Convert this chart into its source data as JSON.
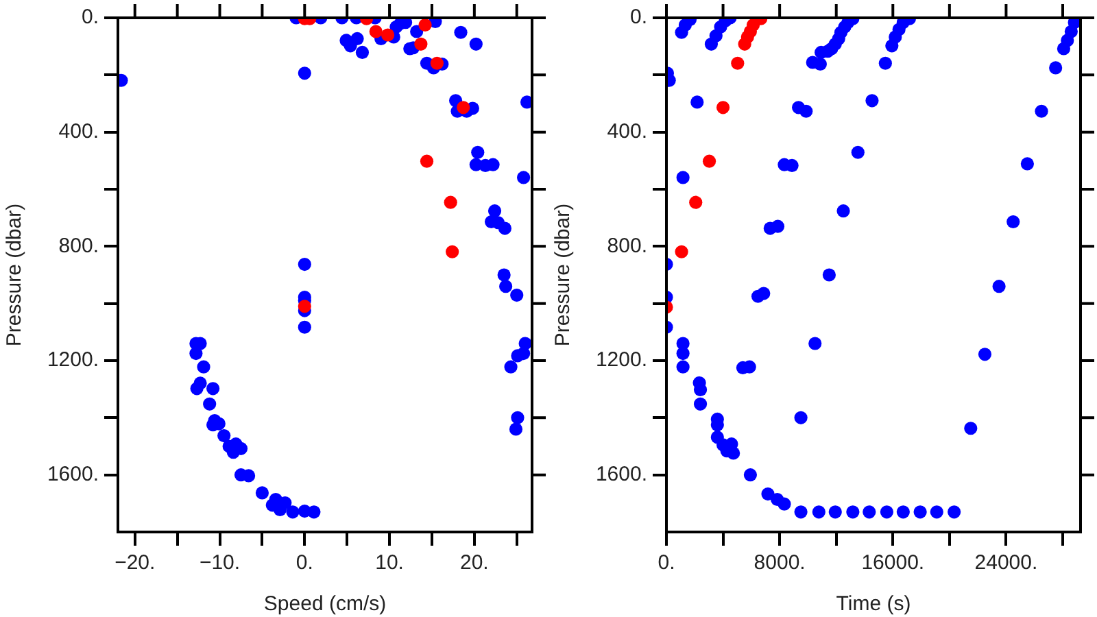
{
  "chart_data": [
    {
      "type": "scatter",
      "xlabel": "Speed (cm/s)",
      "ylabel": "Pressure (dbar)",
      "xlim": [
        -22,
        26.8
      ],
      "ylim": [
        1800,
        0
      ],
      "xticks": [
        {
          "value": -20,
          "label": "−20."
        },
        {
          "value": -15,
          "label": null
        },
        {
          "value": -10,
          "label": "−10."
        },
        {
          "value": -5,
          "label": null
        },
        {
          "value": 0,
          "label": "0."
        },
        {
          "value": 5,
          "label": null
        },
        {
          "value": 10,
          "label": "10."
        },
        {
          "value": 15,
          "label": null
        },
        {
          "value": 20,
          "label": "20."
        },
        {
          "value": 25,
          "label": null
        }
      ],
      "yticks": [
        {
          "value": 0,
          "label": "0."
        },
        {
          "value": 200,
          "label": null
        },
        {
          "value": 400,
          "label": "400."
        },
        {
          "value": 600,
          "label": null
        },
        {
          "value": 800,
          "label": "800."
        },
        {
          "value": 1000,
          "label": null
        },
        {
          "value": 1200,
          "label": "1200."
        },
        {
          "value": 1400,
          "label": null
        },
        {
          "value": 1600,
          "label": "1600."
        }
      ],
      "grid": false,
      "legend": false,
      "marker": "circle",
      "series": [
        {
          "color": "#0000ff",
          "x": [
            -21.6,
            -1,
            1.9,
            4.4,
            6.1,
            8.3,
            0,
            4.9,
            5.4,
            6.2,
            6.8,
            9,
            10.5,
            10.8,
            11.3,
            11.9,
            12.4,
            12.8,
            13.2,
            14.4,
            15.2,
            16.2,
            15.4,
            18.4,
            20.2,
            17.8,
            18,
            19.1,
            19.8,
            26.2,
            20.4,
            20.2,
            21.3,
            22.2,
            25.8,
            22.4,
            22,
            22.8,
            23.6,
            23.5,
            23.7,
            25,
            0,
            0,
            0,
            0,
            0,
            -12.8,
            -12.3,
            -12.8,
            -11.9,
            -12.7,
            -12.3,
            -10.8,
            -11.2,
            -10.6,
            -10.1,
            -10.8,
            -9.5,
            -8.9,
            -8.1,
            -7.5,
            -8.4,
            -7.5,
            -6.6,
            -5,
            -3.4,
            -2.3,
            -2.9,
            -1.4,
            0,
            1.1,
            -3.8,
            24.3,
            25.1,
            25.8,
            26,
            25.1,
            24.9
          ],
          "values": [
            219,
            0,
            0,
            0,
            0,
            0,
            194,
            79,
            98,
            73,
            121,
            73,
            67,
            32,
            19,
            16,
            108,
            105,
            48,
            159,
            175,
            162,
            13,
            51,
            92,
            290,
            327,
            327,
            317,
            295,
            471,
            514,
            517,
            514,
            559,
            676,
            714,
            717,
            737,
            900,
            940,
            971,
            863,
            978,
            990,
            1025,
            1083,
            1140,
            1140,
            1175,
            1222,
            1298,
            1279,
            1298,
            1352,
            1410,
            1421,
            1425,
            1463,
            1500,
            1492,
            1508,
            1521,
            1600,
            1603,
            1663,
            1686,
            1698,
            1722,
            1730,
            1727,
            1730,
            1706,
            1222,
            1183,
            1175,
            1140,
            1400,
            1440
          ]
        },
        {
          "color": "#ff0000",
          "x": [
            0,
            0.6,
            7.3,
            8.4,
            9.8,
            13.7,
            14.2,
            15.6,
            18.7,
            14.4,
            17.2,
            17.4,
            0
          ],
          "values": [
            3,
            3,
            3,
            48,
            60,
            92,
            25,
            159,
            314,
            502,
            646,
            819,
            1010
          ]
        }
      ]
    },
    {
      "type": "scatter",
      "xlabel": "Time (s)",
      "ylabel": "Pressure (dbar)",
      "xlim": [
        0,
        29260
      ],
      "ylim": [
        1800,
        0
      ],
      "xticks": [
        {
          "value": 0,
          "label": "0."
        },
        {
          "value": 4000,
          "label": null
        },
        {
          "value": 8000,
          "label": "8000."
        },
        {
          "value": 12000,
          "label": null
        },
        {
          "value": 16000,
          "label": "16000."
        },
        {
          "value": 20000,
          "label": null
        },
        {
          "value": 24000,
          "label": "24000."
        },
        {
          "value": 28000,
          "label": null
        }
      ],
      "yticks": [
        {
          "value": 0,
          "label": "0."
        },
        {
          "value": 200,
          "label": null
        },
        {
          "value": 400,
          "label": "400."
        },
        {
          "value": 600,
          "label": null
        },
        {
          "value": 800,
          "label": "800."
        },
        {
          "value": 1000,
          "label": null
        },
        {
          "value": 1200,
          "label": "1200."
        },
        {
          "value": 1400,
          "label": null
        },
        {
          "value": 1600,
          "label": "1600."
        }
      ],
      "grid": false,
      "legend": false,
      "marker": "circle",
      "series": [
        {
          "color": "#0000ff",
          "x": [
            70,
            200,
            1070,
            1330,
            1670,
            2170,
            1170,
            3170,
            3500,
            3830,
            4170,
            4500,
            9330,
            9870,
            8330,
            8870,
            7330,
            7870,
            6470,
            6870,
            10330,
            10870,
            10930,
            11400,
            11670,
            11930,
            12170,
            12330,
            12600,
            12830,
            13170,
            13530,
            14530,
            15470,
            15930,
            16170,
            16430,
            16730,
            17170,
            12500,
            11500,
            23500,
            24500,
            25500,
            26500,
            27500,
            28070,
            28330,
            28600,
            28830,
            0,
            0,
            0,
            1170,
            1170,
            1170,
            2330,
            2400,
            2400,
            3600,
            3600,
            3600,
            4000,
            4270,
            4600,
            4730,
            5400,
            5870,
            5930,
            7170,
            7830,
            8330,
            9500,
            10770,
            11930,
            13170,
            14330,
            15570,
            16730,
            17930,
            19100,
            20330,
            9500,
            10500,
            21500,
            22500
          ],
          "values": [
            194,
            219,
            51,
            25,
            6,
            295,
            559,
            92,
            63,
            32,
            10,
            0,
            314,
            327,
            514,
            517,
            737,
            730,
            975,
            965,
            156,
            162,
            121,
            117,
            108,
            92,
            73,
            51,
            32,
            16,
            3,
            471,
            290,
            159,
            98,
            67,
            41,
            16,
            3,
            676,
            900,
            940,
            714,
            511,
            327,
            175,
            108,
            79,
            48,
            16,
            863,
            978,
            1083,
            1140,
            1175,
            1222,
            1278,
            1302,
            1352,
            1405,
            1425,
            1468,
            1495,
            1516,
            1492,
            1524,
            1225,
            1222,
            1600,
            1667,
            1686,
            1702,
            1730,
            1730,
            1730,
            1730,
            1730,
            1730,
            1730,
            1730,
            1730,
            1730,
            1400,
            1140,
            1437,
            1178
          ]
        },
        {
          "color": "#ff0000",
          "x": [
            0,
            1070,
            2070,
            3030,
            4000,
            5030,
            5530,
            5730,
            5930,
            6130,
            6670
          ],
          "values": [
            1013,
            819,
            646,
            502,
            314,
            159,
            92,
            67,
            48,
            25,
            3
          ]
        }
      ]
    }
  ]
}
